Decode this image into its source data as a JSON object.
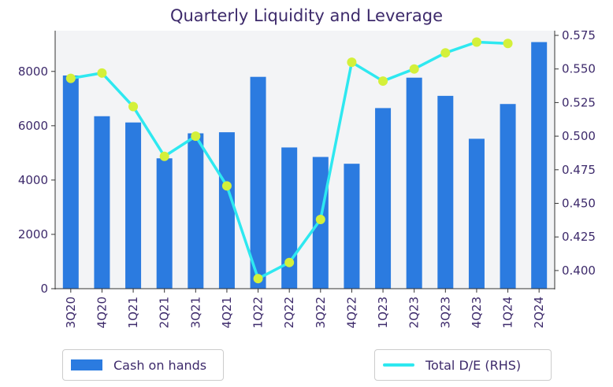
{
  "chart_data": {
    "type": "bar+line",
    "title": "Quarterly Liquidity and Leverage",
    "categories": [
      "3Q20",
      "4Q20",
      "1Q21",
      "2Q21",
      "3Q21",
      "4Q21",
      "1Q22",
      "2Q22",
      "3Q22",
      "4Q22",
      "1Q23",
      "2Q23",
      "3Q23",
      "4Q23",
      "1Q24",
      "2Q24"
    ],
    "series": [
      {
        "name": "Cash on hands",
        "type": "bar",
        "axis": "left",
        "color": "#2b7be0",
        "values": [
          7850,
          6350,
          6120,
          4800,
          5720,
          5760,
          7800,
          5200,
          4850,
          4600,
          6650,
          7770,
          7100,
          5520,
          6800,
          9080
        ]
      },
      {
        "name": "Total D/E (RHS)",
        "type": "line",
        "axis": "right",
        "color": "#2ee8f0",
        "marker_color": "#d4f03a",
        "values": [
          0.543,
          0.547,
          0.522,
          0.485,
          0.5,
          0.463,
          0.394,
          0.406,
          0.438,
          0.555,
          0.541,
          0.55,
          0.562,
          0.57,
          0.569,
          null
        ]
      }
    ],
    "y_left": {
      "ticks": [
        "0",
        "2000",
        "4000",
        "6000",
        "8000"
      ],
      "lim": [
        0,
        9500
      ]
    },
    "y_right": {
      "ticks": [
        "0.400",
        "0.425",
        "0.450",
        "0.475",
        "0.500",
        "0.525",
        "0.550",
        "0.575"
      ],
      "lim": [
        0.3865,
        0.5785
      ]
    },
    "grid": false,
    "plot_background": "#f3f4f6",
    "legend": {
      "position": "bottom"
    }
  }
}
